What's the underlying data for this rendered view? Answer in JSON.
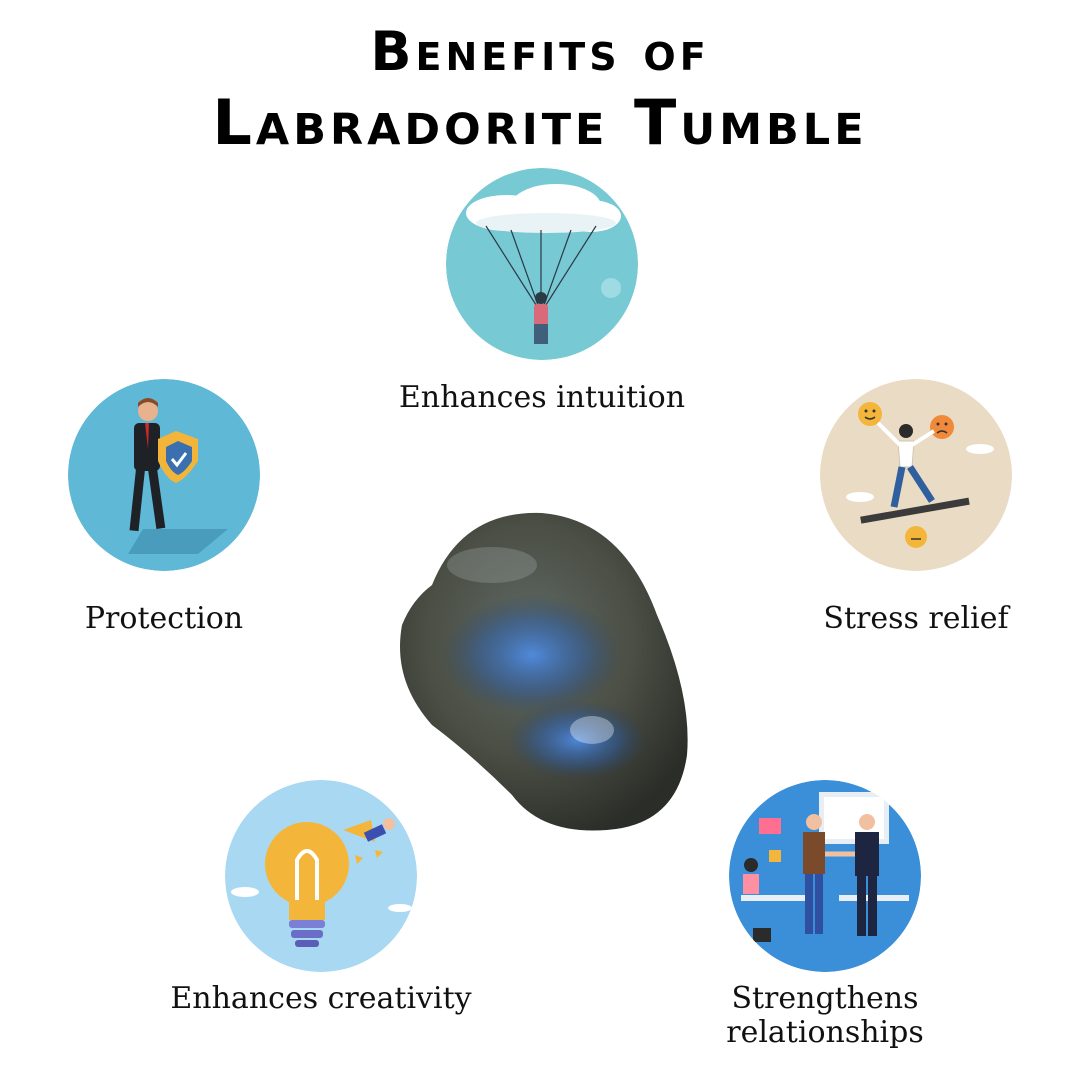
{
  "title": {
    "line1": "Benefits of",
    "line2": "Labradorite Tumble"
  },
  "benefits": [
    {
      "label": "Enhances intuition",
      "icon": "parachute-icon"
    },
    {
      "label": "Protection",
      "icon": "shield-businessman-icon"
    },
    {
      "label": "Stress relief",
      "icon": "balance-emotions-icon"
    },
    {
      "label": "Enhances creativity",
      "icon": "lightbulb-icon"
    },
    {
      "label": "Strengthens",
      "label_line2": "relationships",
      "icon": "handshake-icon"
    }
  ],
  "colors": {
    "teal_circle": "#77C9D4",
    "sky_circle": "#5FB8D6",
    "beige_circle": "#EADCC4",
    "light_blue_circle": "#A9D8F2",
    "office_circle": "#3A8FD8",
    "stone": "#4B4F45"
  }
}
